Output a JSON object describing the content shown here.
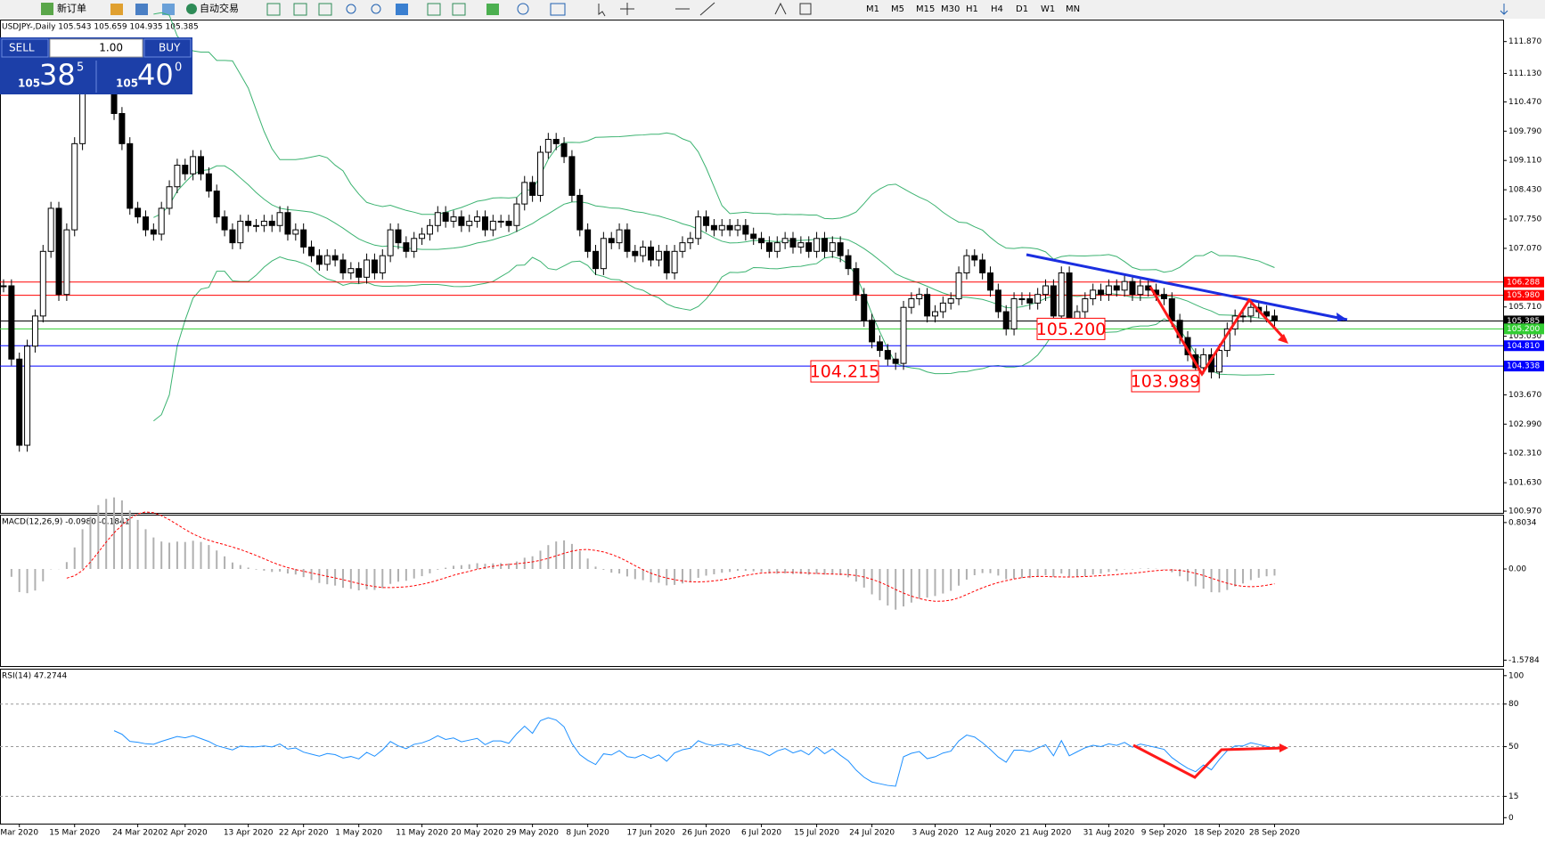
{
  "toolbar": {
    "new_order": "新订单",
    "auto_trading": "自动交易",
    "timeframes": [
      "M1",
      "M5",
      "M15",
      "M30",
      "H1",
      "H4",
      "D1",
      "W1",
      "MN"
    ]
  },
  "one_click": {
    "sell": "SELL",
    "lots": "1.00",
    "buy": "BUY",
    "bid_big": "105",
    "bid_main": "38",
    "bid_small": "5",
    "ask_big": "105",
    "ask_main": "40",
    "ask_small": "0"
  },
  "chart_data": [
    {
      "type": "candlestick",
      "title": "USDJPY-,Daily 105.543 105.659 104.935 105.385",
      "categories": [
        null,
        null,
        "Mar 2020",
        null,
        null,
        null,
        null,
        null,
        null,
        "15 Mar 2020",
        null,
        null,
        null,
        null,
        null,
        null,
        null,
        "24 Mar 2020",
        null,
        null,
        null,
        null,
        null,
        "2 Apr 2020",
        null,
        null,
        null,
        null,
        null,
        null,
        null,
        "13 Apr 2020",
        null,
        null,
        null,
        null,
        null,
        null,
        "22 Apr 2020",
        null,
        null,
        null,
        null,
        null,
        null,
        "1 May 2020",
        null,
        null,
        null,
        null,
        null,
        null,
        null,
        "11 May 2020",
        null,
        null,
        null,
        null,
        null,
        null,
        "20 May 2020",
        null,
        null,
        null,
        null,
        null,
        null,
        "29 May 2020",
        null,
        null,
        null,
        null,
        null,
        null,
        "8 Jun 2020",
        null,
        null,
        null,
        null,
        null,
        null,
        null,
        "17 Jun 2020",
        null,
        null,
        null,
        null,
        null,
        null,
        "26 Jun 2020",
        null,
        null,
        null,
        null,
        null,
        null,
        "6 Jul 2020",
        null,
        null,
        null,
        null,
        null,
        null,
        "15 Jul 2020",
        null,
        null,
        null,
        null,
        null,
        null,
        "24 Jul 2020",
        null,
        null,
        null,
        null,
        null,
        null,
        null,
        "3 Aug 2020",
        null,
        null,
        null,
        null,
        null,
        null,
        "12 Aug 2020",
        null,
        null,
        null,
        null,
        null,
        null,
        "21 Aug 2020",
        null,
        null,
        null,
        null,
        null,
        null,
        null,
        "31 Aug 2020",
        null,
        null,
        null,
        null,
        null,
        null,
        "9 Sep 2020",
        null,
        null,
        null,
        null,
        null,
        null,
        "18 Sep 2020",
        null,
        null,
        null,
        null,
        null,
        null,
        "28 Sep 2020"
      ],
      "values": [
        106.2,
        104.5,
        102.5,
        104.8,
        105.5,
        107.0,
        108.0,
        106.0,
        107.5,
        109.5,
        111.0,
        110.8,
        111.2,
        110.8,
        110.2,
        109.5,
        108.0,
        107.8,
        107.5,
        107.4,
        108.0,
        108.5,
        109.0,
        108.8,
        109.2,
        108.8,
        108.4,
        107.8,
        107.5,
        107.2,
        107.7,
        107.6,
        107.6,
        107.7,
        107.6,
        107.9,
        107.4,
        107.5,
        107.1,
        106.9,
        106.7,
        106.9,
        106.8,
        106.5,
        106.6,
        106.4,
        106.8,
        106.5,
        106.9,
        107.5,
        107.2,
        107.0,
        107.3,
        107.4,
        107.6,
        107.9,
        107.7,
        107.8,
        107.6,
        107.7,
        107.8,
        107.5,
        107.7,
        107.7,
        107.6,
        108.1,
        108.6,
        108.3,
        109.3,
        109.6,
        109.5,
        109.2,
        108.3,
        107.5,
        107.0,
        106.6,
        107.3,
        107.2,
        107.5,
        107.0,
        106.9,
        107.1,
        106.8,
        107.0,
        106.5,
        107.0,
        107.2,
        107.3,
        107.8,
        107.6,
        107.5,
        107.6,
        107.5,
        107.6,
        107.4,
        107.3,
        107.2,
        107.0,
        107.2,
        107.3,
        107.1,
        107.2,
        107.0,
        107.3,
        107.0,
        107.2,
        106.9,
        106.6,
        106.0,
        105.4,
        104.9,
        104.7,
        104.5,
        104.4,
        105.7,
        105.9,
        106.0,
        105.5,
        105.6,
        105.8,
        105.9,
        106.5,
        106.9,
        106.8,
        106.5,
        106.1,
        105.6,
        105.2,
        105.9,
        105.9,
        105.8,
        106.0,
        106.2,
        105.5,
        106.5,
        105.3,
        105.6,
        105.9,
        106.1,
        106.0,
        106.2,
        106.1,
        106.3,
        106.0,
        106.2,
        106.1,
        106.0,
        105.9,
        105.4,
        105.0,
        104.6,
        104.3,
        104.6,
        104.2,
        104.7,
        105.2,
        105.5,
        105.5,
        105.7,
        105.6,
        105.5,
        105.385
      ],
      "ylim": [
        100.93,
        112.38
      ],
      "yticks": [
        {
          "value": 111.87,
          "label": "111.870"
        },
        {
          "value": 111.13,
          "label": "111.130"
        },
        {
          "value": 110.47,
          "label": "110.470"
        },
        {
          "value": 109.79,
          "label": "109.790"
        },
        {
          "value": 109.11,
          "label": "109.110"
        },
        {
          "value": 108.43,
          "label": "108.430"
        },
        {
          "value": 107.75,
          "label": "107.750"
        },
        {
          "value": 107.07,
          "label": "107.070"
        },
        {
          "value": 105.71,
          "label": "105.710"
        },
        {
          "value": 105.03,
          "label": "105.030"
        },
        {
          "value": 103.67,
          "label": "103.670"
        },
        {
          "value": 102.99,
          "label": "102.990"
        },
        {
          "value": 102.31,
          "label": "102.310"
        },
        {
          "value": 101.63,
          "label": "101.630"
        },
        {
          "value": 100.97,
          "label": "100.970"
        }
      ],
      "levels": [
        {
          "value": 106.288,
          "label": "106.288",
          "color": "#ff0000"
        },
        {
          "value": 105.98,
          "label": "105.980",
          "color": "#ff0000"
        },
        {
          "value": 105.385,
          "label": "105.385",
          "color": "#000000"
        },
        {
          "value": 105.2,
          "label": "105.200",
          "color": "#32cd32"
        },
        {
          "value": 104.81,
          "label": "104.810",
          "color": "#0000ff"
        },
        {
          "value": 104.338,
          "label": "104.338",
          "color": "#0000ff"
        }
      ],
      "annotations": [
        {
          "value": 104.215,
          "label": "104.215"
        },
        {
          "value": 105.2,
          "label": "105.200"
        },
        {
          "value": 103.989,
          "label": "103.989"
        }
      ]
    },
    {
      "type": "macd",
      "title": "MACD(12,26,9) -0.0980 -0.1841",
      "ylim": [
        -1.68,
        0.94
      ],
      "yticks": [
        0.8034,
        {
          "value": 0,
          "label": "0.00"
        },
        -1.5784
      ]
    },
    {
      "type": "rsi",
      "title": "RSI(14) 47.2744",
      "ylim": [
        -4.2,
        104.9
      ],
      "yticks": [
        100,
        80,
        50,
        15,
        0
      ],
      "levels": [
        80,
        50,
        15
      ]
    }
  ]
}
